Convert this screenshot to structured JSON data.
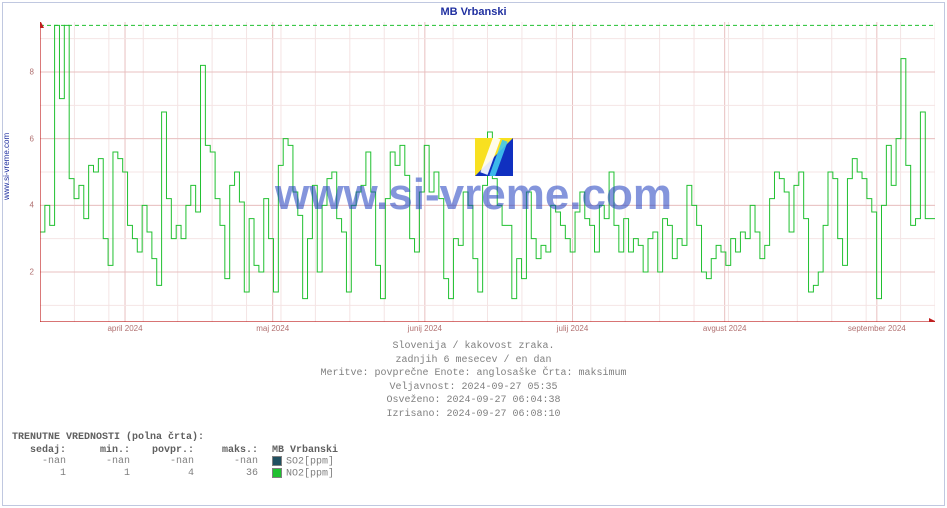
{
  "source_label": "www.si-vreme.com",
  "watermark_text": "www.si-vreme.com",
  "chart": {
    "title": "MB Vrbanski",
    "type": "line",
    "background_color": "#ffffff",
    "frame_color": "#c0c8e0",
    "axis_color": "#c02020",
    "grid_major_color": "#e8c0c0",
    "grid_minor_color": "#f4e4e4",
    "line_color": "#20c030",
    "threshold_color": "#20c030",
    "threshold_value": 9.4,
    "label_color": "#b07070",
    "title_color": "#2030a0",
    "ylim": [
      0.5,
      9.5
    ],
    "yticks": [
      2,
      4,
      6,
      8
    ],
    "xticks": [
      {
        "pos": 0.095,
        "label": "april 2024"
      },
      {
        "pos": 0.26,
        "label": "maj 2024"
      },
      {
        "pos": 0.43,
        "label": "junij 2024"
      },
      {
        "pos": 0.595,
        "label": "julij 2024"
      },
      {
        "pos": 0.765,
        "label": "avgust 2024"
      },
      {
        "pos": 0.935,
        "label": "september 2024"
      }
    ],
    "weeks_minor": 26,
    "series_values": [
      3.2,
      4.0,
      3.4,
      9.4,
      7.2,
      9.4,
      4.8,
      4.2,
      4.6,
      3.6,
      5.2,
      5.0,
      5.4,
      3.0,
      2.2,
      5.6,
      5.4,
      5.0,
      3.4,
      3.0,
      2.6,
      4.0,
      3.2,
      2.4,
      1.6,
      6.8,
      4.2,
      3.0,
      3.4,
      3.0,
      4.0,
      4.6,
      3.8,
      8.2,
      5.8,
      5.6,
      4.2,
      3.4,
      1.8,
      4.6,
      5.0,
      4.1,
      1.4,
      3.6,
      2.2,
      2.0,
      4.2,
      3.0,
      1.4,
      5.2,
      6.0,
      5.8,
      4.4,
      3.7,
      1.2,
      3.0,
      4.6,
      2.0,
      4.0,
      4.8,
      5.0,
      3.6,
      3.2,
      1.4,
      4.0,
      4.4,
      4.6,
      5.6,
      4.4,
      2.2,
      1.2,
      4.2,
      5.6,
      5.2,
      5.8,
      4.9,
      3.0,
      2.6,
      4.4,
      5.8,
      4.4,
      5.0,
      4.2,
      1.8,
      1.2,
      3.0,
      2.8,
      4.4,
      4.0,
      2.4,
      1.4,
      4.6,
      6.2,
      4.8,
      4.0,
      3.4,
      3.4,
      1.2,
      2.4,
      1.8,
      4.4,
      3.0,
      2.4,
      2.8,
      2.6,
      4.0,
      3.8,
      3.4,
      3.0,
      2.6,
      3.8,
      4.4,
      3.6,
      3.4,
      2.6,
      4.0,
      3.6,
      5.0,
      3.4,
      2.6,
      3.6,
      2.6,
      3.0,
      2.8,
      2.0,
      3.0,
      3.2,
      2.0,
      3.6,
      3.4,
      2.4,
      3.0,
      2.8,
      4.6,
      4.0,
      3.4,
      2.0,
      1.8,
      2.4,
      2.8,
      2.6,
      2.2,
      3.0,
      2.6,
      3.2,
      3.0,
      4.0,
      3.2,
      2.4,
      2.8,
      4.2,
      5.0,
      4.8,
      4.4,
      3.2,
      4.6,
      5.0,
      3.6,
      1.4,
      1.6,
      2.0,
      3.4,
      5.0,
      4.8,
      3.0,
      2.2,
      4.8,
      5.4,
      5.0,
      4.8,
      4.2,
      3.8,
      1.2,
      4.0,
      5.8,
      4.6,
      6.0,
      8.4,
      5.2,
      3.4,
      3.6,
      6.8,
      3.6,
      3.6
    ]
  },
  "meta": {
    "line1": "Slovenija / kakovost zraka.",
    "line2": "zadnjih 6 mesecev / en dan",
    "line3": "Meritve: povprečne  Enote: anglosaške  Črta: maksimum",
    "line4": "Veljavnost: 2024-09-27 05:35",
    "line5": "Osveženo: 2024-09-27 06:04:38",
    "line6": "Izrisano: 2024-09-27 06:08:10"
  },
  "table": {
    "title": "TRENUTNE VREDNOSTI (polna črta):",
    "headers": [
      "sedaj:",
      "min.:",
      "povpr.:",
      "maks.:"
    ],
    "series": [
      {
        "name": "MB Vrbanski",
        "is_header": true
      },
      {
        "name": "SO2[ppm]",
        "color": "#205060",
        "values": [
          "-nan",
          "-nan",
          "-nan",
          "-nan"
        ]
      },
      {
        "name": "NO2[ppm]",
        "color": "#20c030",
        "values": [
          "1",
          "1",
          "4",
          "36"
        ]
      }
    ]
  }
}
